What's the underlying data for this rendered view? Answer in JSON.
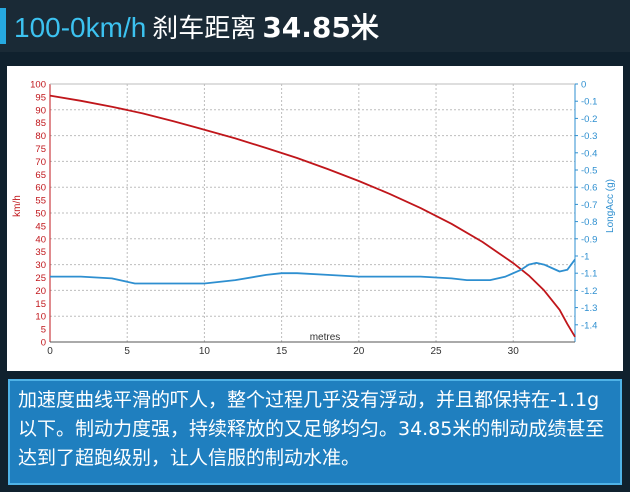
{
  "header": {
    "speed_range": "100-0km/h",
    "metric_label": "刹车距离",
    "metric_value": "34.85米"
  },
  "chart_data": {
    "type": "line",
    "title": "",
    "xlabel": "metres",
    "ylabel": "km/h",
    "y2label": "LongAcc (g)",
    "xlim": [
      0,
      34
    ],
    "ylim": [
      0,
      100
    ],
    "y2lim": [
      -1.5,
      0
    ],
    "x_ticks": [
      0,
      5,
      10,
      15,
      20,
      25,
      30
    ],
    "y_ticks": [
      0,
      5,
      10,
      15,
      20,
      25,
      30,
      35,
      40,
      45,
      50,
      55,
      60,
      65,
      70,
      75,
      80,
      85,
      90,
      95,
      100
    ],
    "y2_ticks": [
      "0",
      "-0.1",
      "-0.2",
      "-0.3",
      "-0.4",
      "-0.5",
      "-0.6",
      "-0.7",
      "-0.8",
      "-0.9",
      "-1",
      "-1.1",
      "-1.2",
      "-1.3",
      "-1.4"
    ],
    "grid": true,
    "colors": {
      "speed": "#c0161b",
      "accel": "#2e8fd0",
      "y2axis": "#2e8fd0",
      "yaxis": "#c0161b"
    },
    "series": [
      {
        "name": "km/h",
        "axis": "left",
        "x": [
          0,
          2,
          4,
          6,
          8,
          10,
          12,
          14,
          16,
          18,
          20,
          22,
          24,
          26,
          28,
          30,
          31,
          32,
          33,
          33.5,
          34
        ],
        "values": [
          95.5,
          93.5,
          91.2,
          88.6,
          85.6,
          82.3,
          78.9,
          75.2,
          71.3,
          67.0,
          62.4,
          57.4,
          51.9,
          45.8,
          38.8,
          30.6,
          25.8,
          20.0,
          12.5,
          7.0,
          2.0
        ]
      },
      {
        "name": "LongAcc (g)",
        "axis": "right",
        "x": [
          0,
          2,
          4,
          5.5,
          8,
          10,
          12,
          14,
          15,
          16,
          18,
          20,
          22,
          24,
          26,
          27,
          28.5,
          29.5,
          30.5,
          31,
          31.5,
          32,
          32.5,
          33,
          33.5,
          34
        ],
        "values": [
          -1.12,
          -1.12,
          -1.13,
          -1.16,
          -1.16,
          -1.16,
          -1.14,
          -1.11,
          -1.1,
          -1.1,
          -1.11,
          -1.12,
          -1.12,
          -1.12,
          -1.13,
          -1.14,
          -1.14,
          -1.12,
          -1.08,
          -1.05,
          -1.04,
          -1.05,
          -1.07,
          -1.09,
          -1.08,
          -1.02
        ]
      }
    ]
  },
  "caption": {
    "text": "加速度曲线平滑的吓人，整个过程几乎没有浮动，并且都保持在-1.1g以下。制动力度强，持续释放的又足够均匀。34.85米的制动成绩甚至达到了超跑级别，让人信服的制动水准。"
  }
}
